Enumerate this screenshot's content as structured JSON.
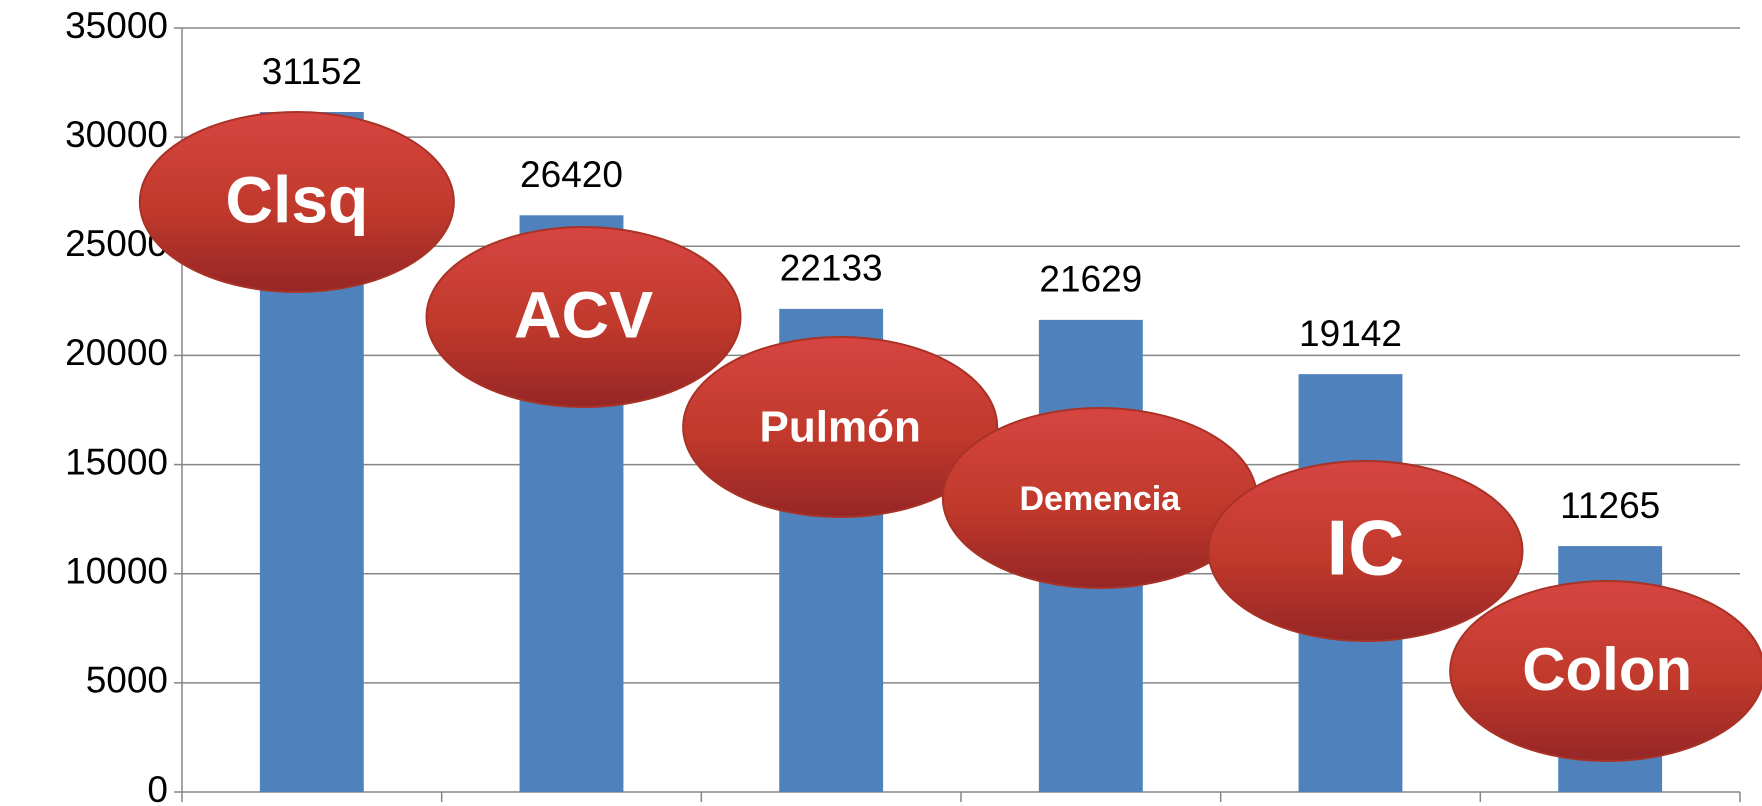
{
  "chart_data": {
    "type": "bar",
    "categories": [
      "Clsq",
      "ACV",
      "Pulmón",
      "Demencia",
      "IC",
      "Colon"
    ],
    "values": [
      31152,
      26420,
      22133,
      21629,
      19142,
      11265
    ],
    "color": "#4f81bd",
    "label_color": "#c0392b",
    "ylim": [
      0,
      35000
    ],
    "yticks": [
      0,
      5000,
      10000,
      15000,
      20000,
      25000,
      30000,
      35000
    ],
    "grid": true
  }
}
